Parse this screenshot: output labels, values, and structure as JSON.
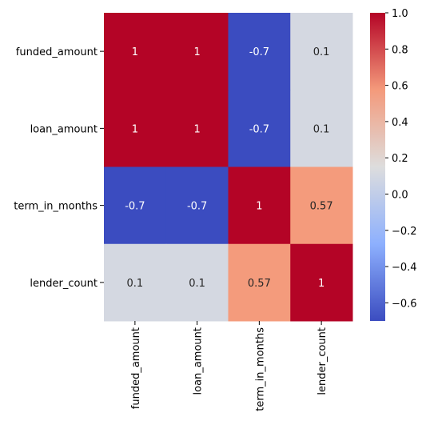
{
  "chart_data": {
    "type": "heatmap",
    "title": "",
    "xlabel": "",
    "ylabel": "",
    "x_categories": [
      "funded_amount",
      "loan_amount",
      "term_in_months",
      "lender_count"
    ],
    "y_categories": [
      "funded_amount",
      "loan_amount",
      "term_in_months",
      "lender_count"
    ],
    "values": [
      [
        1,
        1,
        -0.7,
        0.1
      ],
      [
        1,
        1,
        -0.7,
        0.1
      ],
      [
        -0.7,
        -0.7,
        1,
        0.57
      ],
      [
        0.1,
        0.1,
        0.57,
        1
      ]
    ],
    "cell_labels": [
      [
        "1",
        "1",
        "-0.7",
        "0.1"
      ],
      [
        "1",
        "1",
        "-0.7",
        "0.1"
      ],
      [
        "-0.7",
        "-0.7",
        "1",
        "0.57"
      ],
      [
        "0.1",
        "0.1",
        "0.57",
        "1"
      ]
    ],
    "colormap": "coolwarm",
    "colorbar": {
      "range": [
        -0.7,
        1.0
      ],
      "ticks": [
        1.0,
        0.8,
        0.6,
        0.4,
        0.2,
        0.0,
        -0.2,
        -0.4,
        -0.6
      ],
      "tick_labels": [
        "1.0",
        "0.8",
        "0.6",
        "0.4",
        "0.2",
        "0.0",
        "−0.2",
        "−0.4",
        "−0.6"
      ]
    },
    "grid": false,
    "legend": "colorbar-right"
  }
}
